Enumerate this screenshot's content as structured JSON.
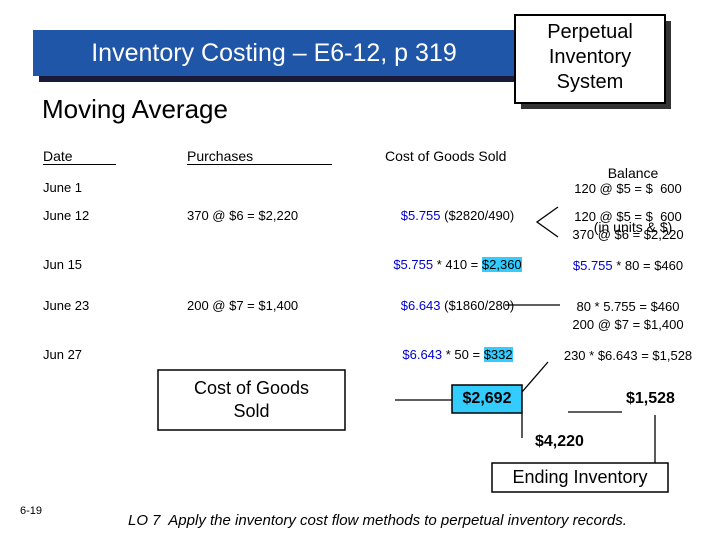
{
  "title": "Inventory Costing – E6-12, p 319",
  "system_box": [
    "Perpetual",
    "Inventory",
    "System"
  ],
  "subtitle": "Moving Average",
  "headers": {
    "date": "Date",
    "purchases": "Purchases",
    "cogs": "Cost of Goods Sold",
    "balance": [
      "Balance",
      "(in units & $)"
    ]
  },
  "rows": [
    {
      "date": "June 1",
      "balance": [
        [
          "120 @ $5 = $  600"
        ]
      ]
    },
    {
      "date": "June 12",
      "purchases": "370 @ $6 = $2,220",
      "cogs": [
        {
          "text": "$5.755",
          "color": "#0000cc"
        },
        " ($2820/490)"
      ],
      "balance": [
        [
          "120 @ $5 = $  600"
        ],
        [
          "370 @ $6 = $2,220"
        ]
      ]
    },
    {
      "date": "Jun 15",
      "cogs": [
        {
          "text": "$5.755",
          "color": "#0000cc"
        },
        " * 410 = ",
        {
          "text": "$2,360",
          "highlight": "#33ccff"
        }
      ],
      "balance": [
        [
          {
            "text": "$5.755",
            "color": "#0000cc"
          },
          " * 80 = $460"
        ]
      ]
    },
    {
      "date": "June 23",
      "purchases": "200 @ $7 = $1,400",
      "cogs": [
        {
          "text": "$6.643",
          "color": "#0000cc"
        },
        " ($1860/280)"
      ],
      "balance": [
        [
          "80 * 5.755 = $460"
        ],
        [
          "200 @ $7 = $1,400"
        ]
      ]
    },
    {
      "date": "Jun 27",
      "cogs": [
        {
          "text": "$6.643",
          "color": "#0000cc"
        },
        " * 50 = ",
        {
          "text": "$332",
          "highlight": "#33ccff"
        }
      ],
      "balance": [
        [
          "230 * $6.643 = $1,528"
        ]
      ]
    }
  ],
  "summary": {
    "cogs_label": [
      "Cost of Goods",
      "Sold"
    ],
    "cogs_total": "$2,692",
    "ending_balance": "$1,528",
    "total": "$4,220",
    "ending_label": "Ending Inventory"
  },
  "page_number": "6-19",
  "footer": "LO 7  Apply the inventory cost flow methods to perpetual inventory records."
}
